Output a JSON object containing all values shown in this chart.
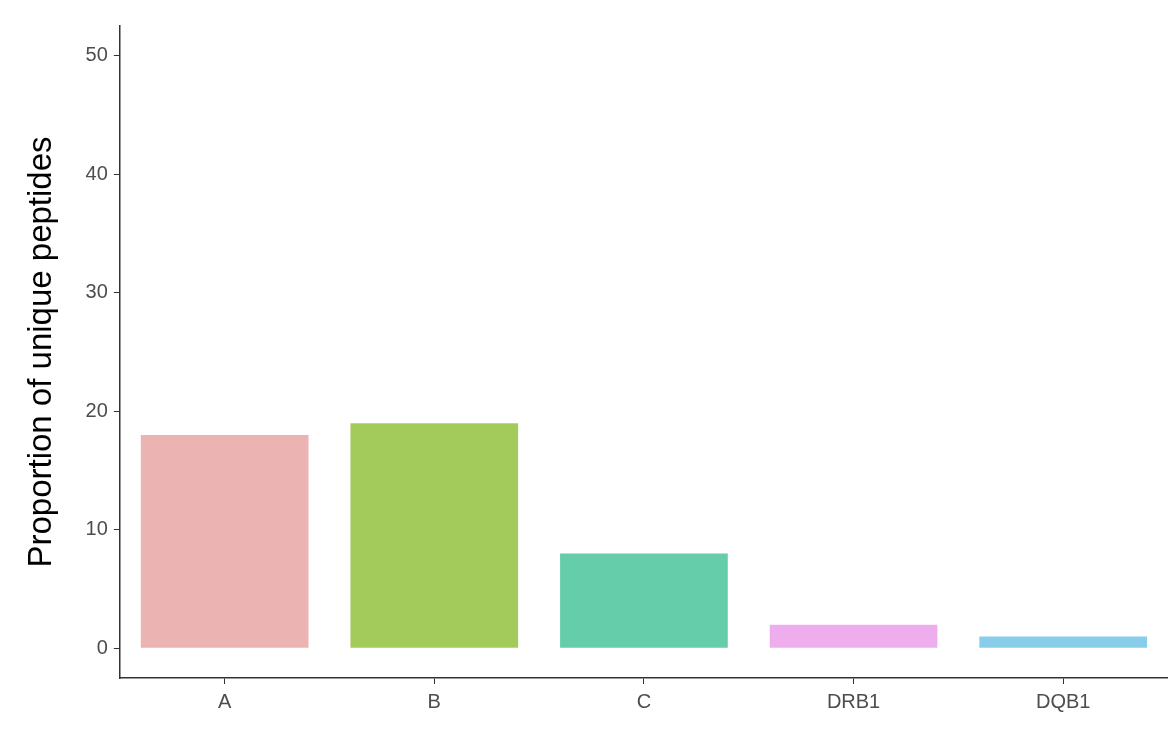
{
  "chart_data": {
    "type": "bar",
    "ylabel": "Proportion of unique peptides",
    "categories": [
      "A",
      "B",
      "C",
      "DRB1",
      "DQB1"
    ],
    "values": [
      18,
      19,
      8,
      2,
      1
    ],
    "colors": [
      "#ecb3b3",
      "#a3cb5c",
      "#66cdaa",
      "#eeaeee",
      "#87ceeb"
    ],
    "ylim": [
      -2.5,
      52.5
    ],
    "yticks": [
      0,
      10,
      20,
      30,
      40,
      50
    ],
    "grid": false,
    "legend": false
  }
}
